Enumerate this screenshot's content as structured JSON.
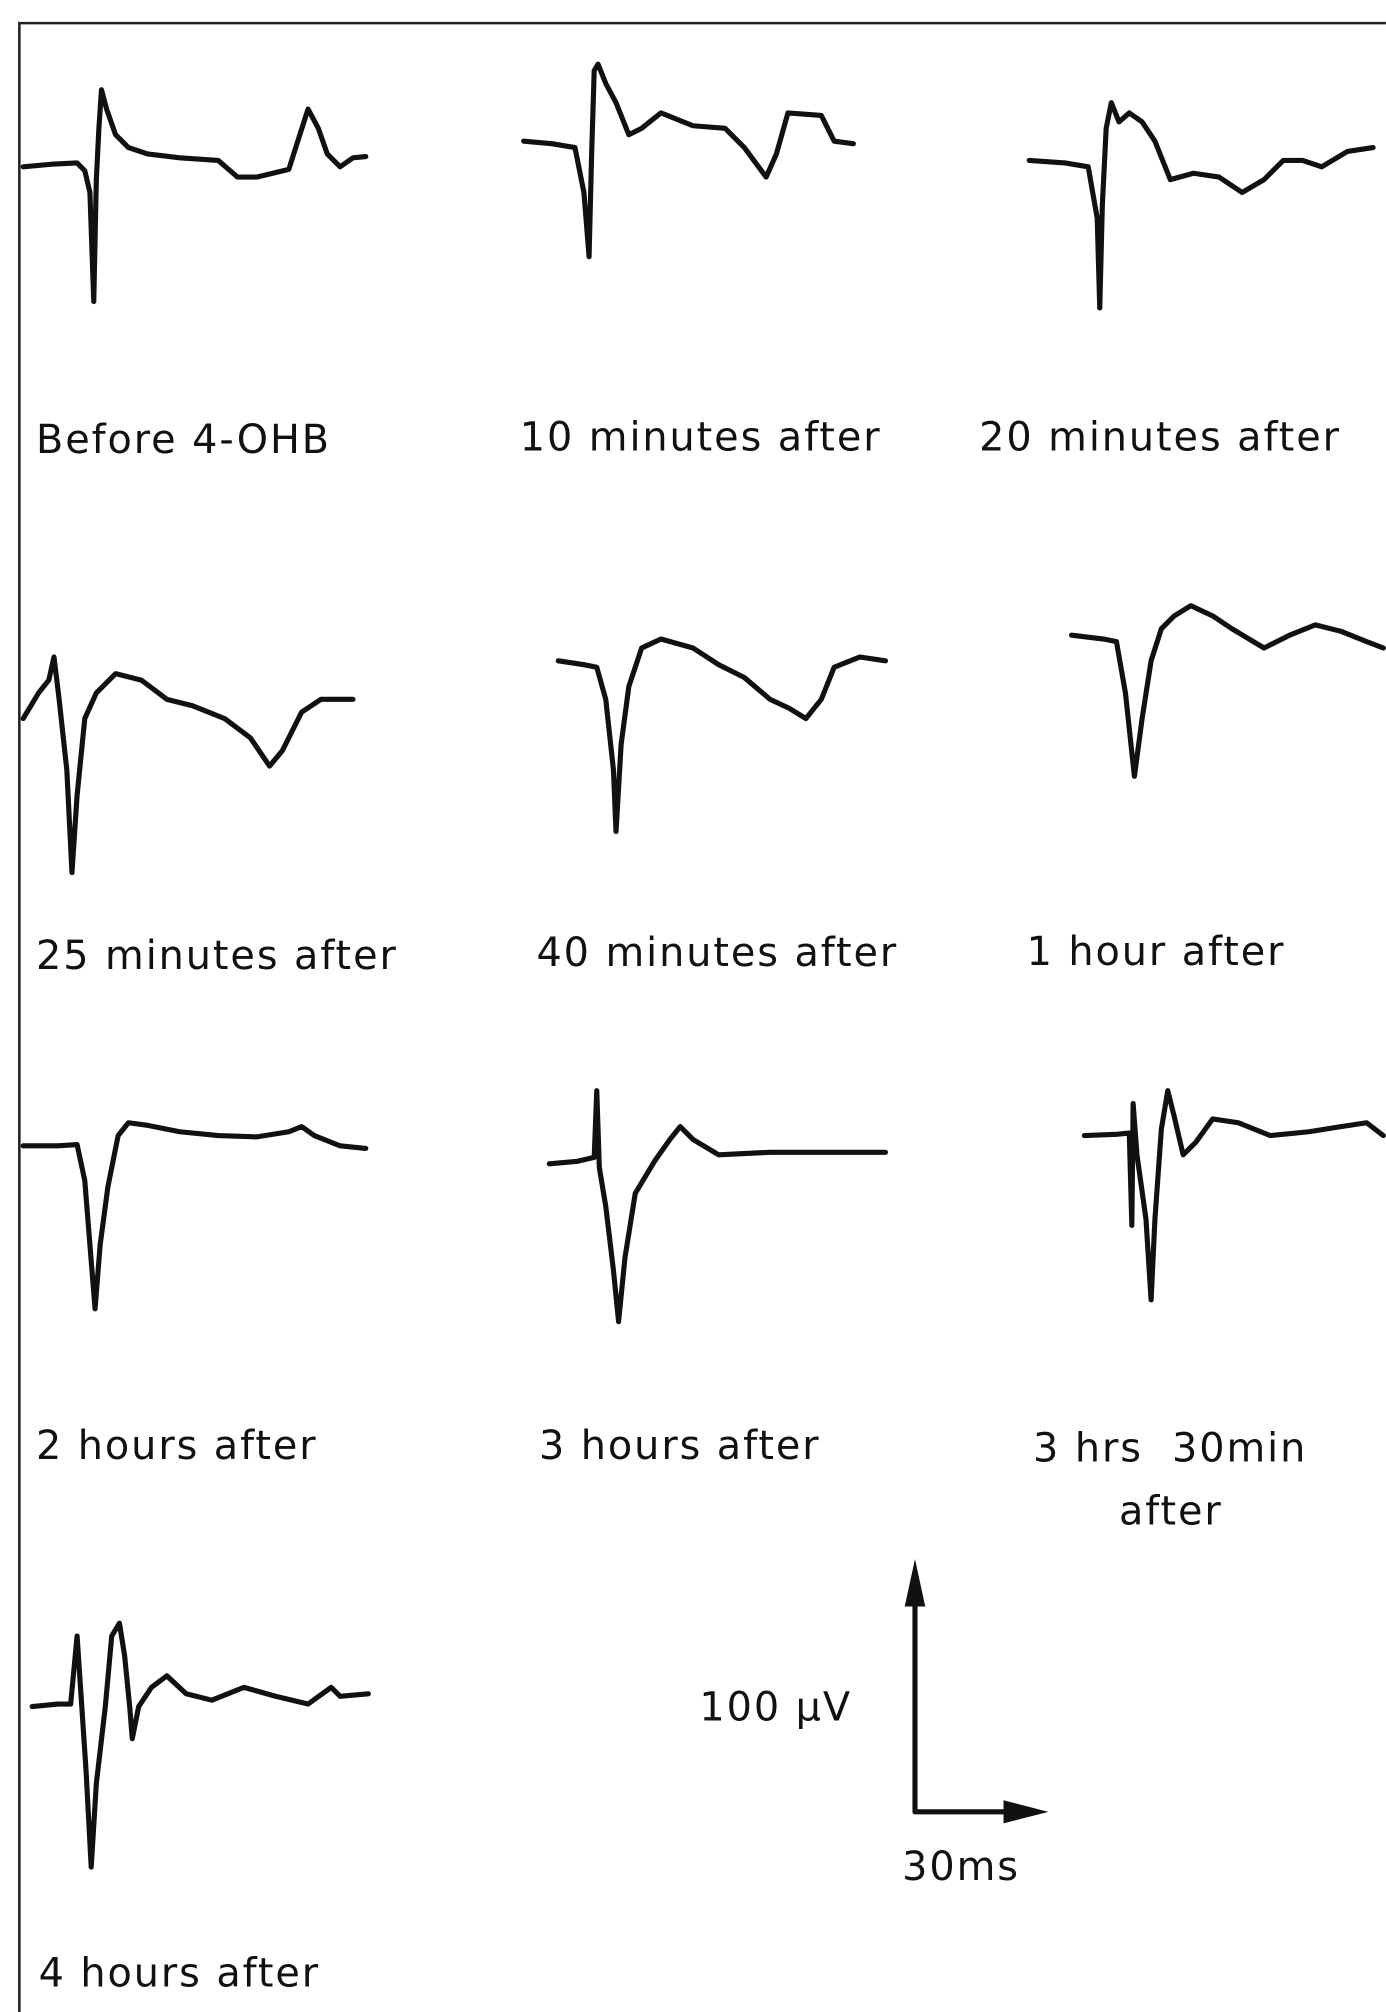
{
  "panels": [
    {
      "label": [
        "Before 4-OHB"
      ]
    },
    {
      "label": [
        "10 minutes after"
      ]
    },
    {
      "label": [
        "20 minutes after"
      ]
    },
    {
      "label": [
        "25 minutes after"
      ]
    },
    {
      "label": [
        "40 minutes after"
      ]
    },
    {
      "label": [
        "1 hour after"
      ]
    },
    {
      "label": [
        "2 hours after"
      ]
    },
    {
      "label": [
        "3 hours after"
      ]
    },
    {
      "label": [
        "3 hrs  30min",
        "after"
      ]
    },
    {
      "label": [
        "4 hours after"
      ]
    }
  ],
  "scale_bar": {
    "vertical": "100 μV",
    "horizontal": "30ms"
  }
}
